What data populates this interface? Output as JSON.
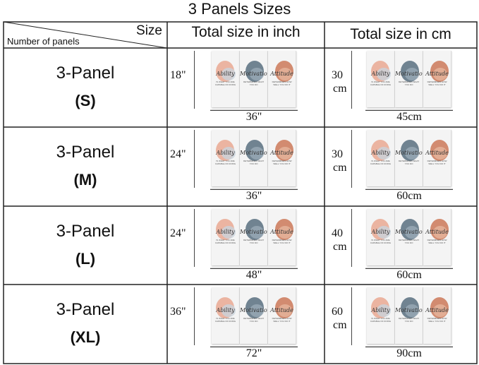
{
  "title": "3 Panels Sizes",
  "header": {
    "size": "Size",
    "number_of_panels": "Number of panels",
    "inch": "Total size in inch",
    "cm": "Total size in cm"
  },
  "artwork": {
    "words": [
      "Ability",
      "Motivation",
      "Attitude"
    ],
    "captions": [
      "IS WHAT YOU ARE CAPABLE OF DOING",
      "DETERMINES WHAT YOU DO",
      "DETERMINES HOW WELL YOU DO IT"
    ]
  },
  "rows": [
    {
      "label": "3-Panel",
      "size": "(S)",
      "height_in": "18\"",
      "width_in": "36\"",
      "height_cm": "30",
      "height_cm_unit": "cm",
      "width_cm": "45cm"
    },
    {
      "label": "3-Panel",
      "size": "(M)",
      "height_in": "24\"",
      "width_in": "36\"",
      "height_cm": "30",
      "height_cm_unit": "cm",
      "width_cm": "60cm"
    },
    {
      "label": "3-Panel",
      "size": "(L)",
      "height_in": "24\"",
      "width_in": "48\"",
      "height_cm": "40",
      "height_cm_unit": "cm",
      "width_cm": "60cm"
    },
    {
      "label": "3-Panel",
      "size": "(XL)",
      "height_in": "36\"",
      "width_in": "72\"",
      "height_cm": "60",
      "height_cm_unit": "cm",
      "width_cm": "90cm"
    }
  ]
}
